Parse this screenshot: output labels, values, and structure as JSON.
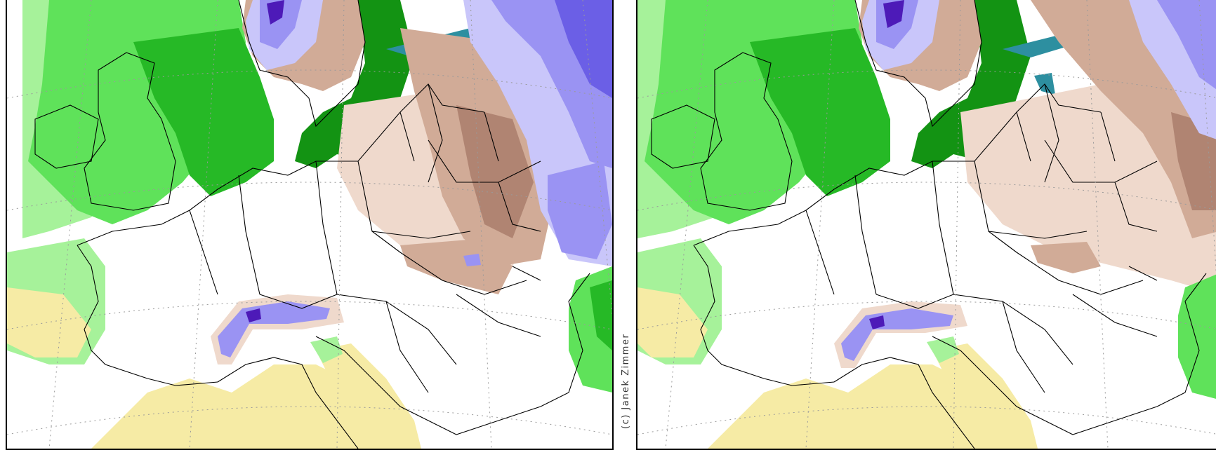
{
  "panels": [
    {
      "id": "left"
    },
    {
      "id": "right"
    }
  ],
  "credit": {
    "text": "(c) Janek Zimmer"
  },
  "colors": {
    "background": "#ffffff",
    "sea_light_green": "#a6f29a",
    "sea_green": "#5fe25a",
    "sea_dark_green": "#26b926",
    "sea_very_dark_green": "#139313",
    "warm_yellow": "#f6eba5",
    "brown_light": "#efd9cc",
    "brown_mid": "#d1ab97",
    "brown_dark": "#b08472",
    "blue_light": "#c9c6fa",
    "blue_mid": "#9a93f3",
    "blue_dark": "#6b5fe6",
    "purple": "#4d1ab8",
    "teal": "#2d8fa0",
    "borders": "#000000"
  }
}
